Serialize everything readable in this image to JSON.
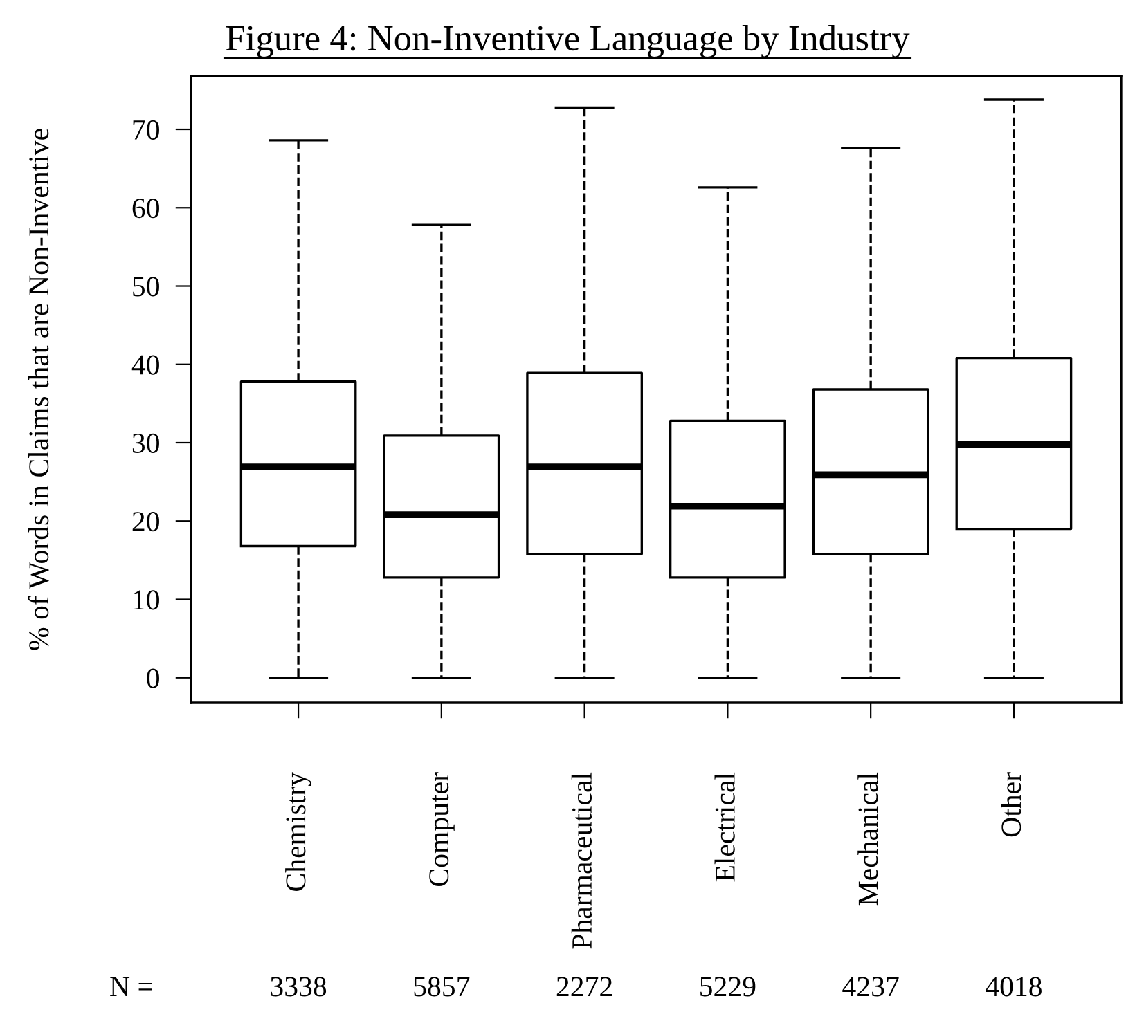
{
  "chart_data": {
    "type": "box",
    "title": "Figure 4: Non-Inventive Language by Industry",
    "ylabel": "% of Words in Claims that are Non-Inventive",
    "categories": [
      "Chemistry",
      "Computer",
      "Pharmaceutical",
      "Electrical",
      "Mechanical",
      "Other"
    ],
    "boxes": [
      {
        "low": 0,
        "q1": 16.8,
        "median": 26.9,
        "q3": 37.8,
        "high": 68.6
      },
      {
        "low": 0,
        "q1": 12.8,
        "median": 20.8,
        "q3": 30.9,
        "high": 57.8
      },
      {
        "low": 0,
        "q1": 15.8,
        "median": 26.9,
        "q3": 38.9,
        "high": 72.8
      },
      {
        "low": 0,
        "q1": 12.8,
        "median": 21.9,
        "q3": 32.8,
        "high": 62.6
      },
      {
        "low": 0,
        "q1": 15.8,
        "median": 25.9,
        "q3": 36.8,
        "high": 67.6
      },
      {
        "low": 0,
        "q1": 19.0,
        "median": 29.8,
        "q3": 40.8,
        "high": 73.8
      }
    ],
    "ylim": [
      -3.2,
      76.8
    ],
    "yticks": [
      0,
      10,
      20,
      30,
      40,
      50,
      60,
      70
    ],
    "grid": false,
    "line_style": "dashed",
    "annotations": [
      "N =",
      "3338",
      "5857",
      "2272",
      "5229",
      "4237",
      "4018"
    ]
  }
}
